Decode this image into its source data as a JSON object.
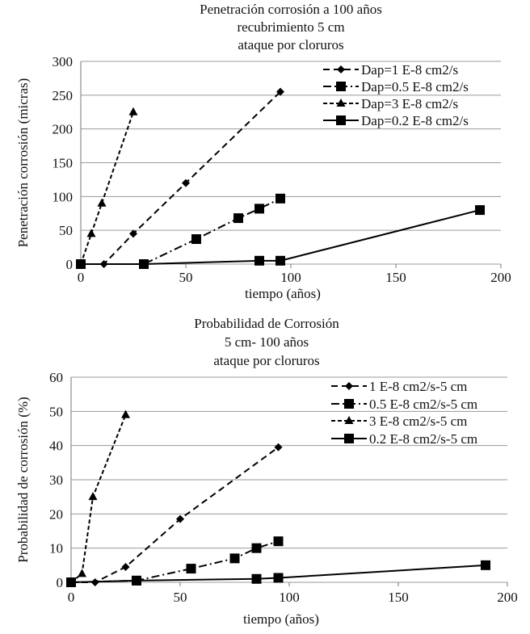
{
  "chart_data": [
    {
      "type": "line",
      "title": [
        "Penetración corrosión a 100 años",
        "recubrimiento 5 cm",
        "ataque por cloruros"
      ],
      "xlabel": "tiempo (años)",
      "ylabel": "Penetración corrosión  (micras)",
      "xlim": [
        0,
        200
      ],
      "ylim": [
        0,
        300
      ],
      "xticks": [
        0,
        50,
        100,
        150,
        200
      ],
      "yticks": [
        0,
        50,
        100,
        150,
        200,
        250,
        300
      ],
      "grid": "horizontal",
      "legend_position": "top-right",
      "series": [
        {
          "name": "Dap=1 E-8 cm2/s",
          "marker": "diamond",
          "line": "dashed",
          "x": [
            0,
            11,
            25,
            50,
            95
          ],
          "y": [
            0,
            0,
            45,
            120,
            255
          ]
        },
        {
          "name": "Dap=0.5 E-8 cm2/s",
          "marker": "square",
          "line": "dash-dot",
          "x": [
            0,
            30,
            55,
            75,
            85,
            95
          ],
          "y": [
            0,
            0,
            37,
            68,
            82,
            97
          ]
        },
        {
          "name": "Dap=3 E-8 cm2/s",
          "marker": "triangle",
          "line": "short-dash",
          "x": [
            0,
            5,
            10,
            25
          ],
          "y": [
            0,
            45,
            90,
            225
          ]
        },
        {
          "name": "Dap=0.2 E-8 cm2/s",
          "marker": "square",
          "line": "solid",
          "x": [
            0,
            30,
            85,
            95,
            190
          ],
          "y": [
            0,
            0,
            5,
            5,
            80
          ]
        }
      ]
    },
    {
      "type": "line",
      "title": [
        "Probabilidad de Corrosión",
        "5 cm- 100 años",
        "ataque por cloruros"
      ],
      "xlabel": "tiempo (años)",
      "ylabel": "Probabilidad de corrosión (%)",
      "xlim": [
        0,
        200
      ],
      "ylim": [
        0,
        60
      ],
      "xticks": [
        0,
        50,
        100,
        150,
        200
      ],
      "yticks": [
        0,
        10,
        20,
        30,
        40,
        50,
        60
      ],
      "grid": "horizontal",
      "legend_position": "top-right",
      "series": [
        {
          "name": "1 E-8 cm2/s-5 cm",
          "marker": "diamond",
          "line": "dashed",
          "x": [
            0,
            11,
            25,
            50,
            95
          ],
          "y": [
            0,
            0,
            4.5,
            18.5,
            39.5
          ]
        },
        {
          "name": "0.5 E-8 cm2/s-5 cm",
          "marker": "square",
          "line": "dash-dot",
          "x": [
            0,
            30,
            55,
            75,
            85,
            95
          ],
          "y": [
            0,
            0.5,
            4,
            7,
            10,
            12
          ]
        },
        {
          "name": "3 E-8 cm2/s-5 cm",
          "marker": "triangle",
          "line": "short-dash",
          "x": [
            0,
            5,
            10,
            25
          ],
          "y": [
            0,
            2.5,
            25,
            49
          ]
        },
        {
          "name": "0.2 E-8 cm2/s-5 cm",
          "marker": "square",
          "line": "solid",
          "x": [
            0,
            30,
            85,
            95,
            190
          ],
          "y": [
            0,
            0.5,
            1,
            1.3,
            5
          ]
        }
      ]
    }
  ]
}
